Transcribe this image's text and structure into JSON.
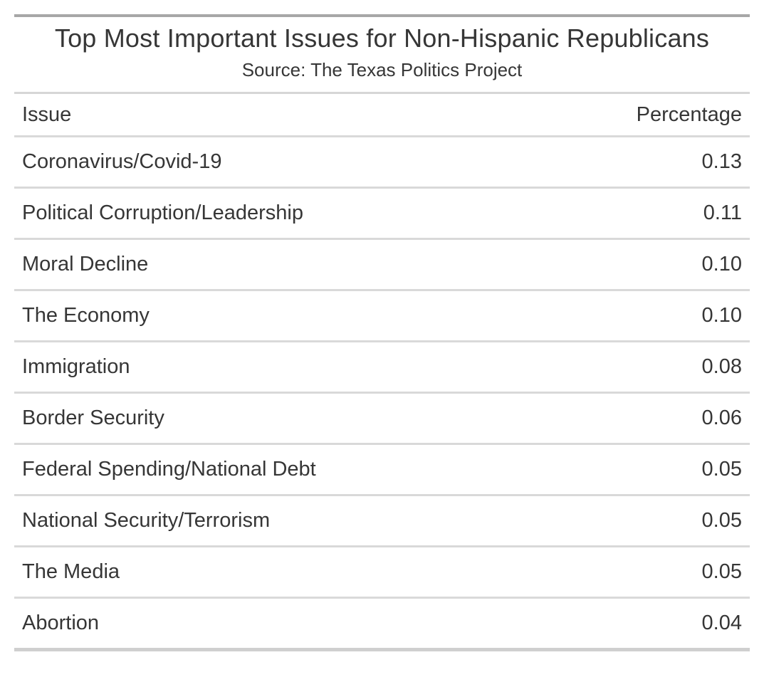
{
  "table": {
    "title": "Top Most Important Issues for Non-Hispanic Republicans",
    "subtitle": "Source: The Texas Politics Project",
    "columns": {
      "issue": "Issue",
      "percentage": "Percentage"
    },
    "rows": [
      {
        "issue": "Coronavirus/Covid-19",
        "percentage": "0.13"
      },
      {
        "issue": "Political Corruption/Leadership",
        "percentage": "0.11"
      },
      {
        "issue": "Moral Decline",
        "percentage": "0.10"
      },
      {
        "issue": "The Economy",
        "percentage": "0.10"
      },
      {
        "issue": "Immigration",
        "percentage": "0.08"
      },
      {
        "issue": "Border Security",
        "percentage": "0.06"
      },
      {
        "issue": "Federal Spending/National Debt",
        "percentage": "0.05"
      },
      {
        "issue": "National Security/Terrorism",
        "percentage": "0.05"
      },
      {
        "issue": "The Media",
        "percentage": "0.05"
      },
      {
        "issue": "Abortion",
        "percentage": "0.04"
      }
    ]
  },
  "colors": {
    "text": "#363636",
    "top_border": "#a7a7a7",
    "row_divider": "#d9d9d9",
    "heading_divider": "#d6d6d6",
    "bottom_border": "#cfcfcf",
    "background": "#ffffff"
  },
  "chart_data": {
    "type": "table",
    "title": "Top Most Important Issues for Non-Hispanic Republicans",
    "subtitle": "Source: The Texas Politics Project",
    "columns": [
      "Issue",
      "Percentage"
    ],
    "rows": [
      [
        "Coronavirus/Covid-19",
        0.13
      ],
      [
        "Political Corruption/Leadership",
        0.11
      ],
      [
        "Moral Decline",
        0.1
      ],
      [
        "The Economy",
        0.1
      ],
      [
        "Immigration",
        0.08
      ],
      [
        "Border Security",
        0.06
      ],
      [
        "Federal Spending/National Debt",
        0.05
      ],
      [
        "National Security/Terrorism",
        0.05
      ],
      [
        "The Media",
        0.05
      ],
      [
        "Abortion",
        0.04
      ]
    ],
    "layout": {
      "title_align": "center",
      "issue_align": "left",
      "percentage_align": "right",
      "grid": "horizontal-dividers"
    }
  }
}
